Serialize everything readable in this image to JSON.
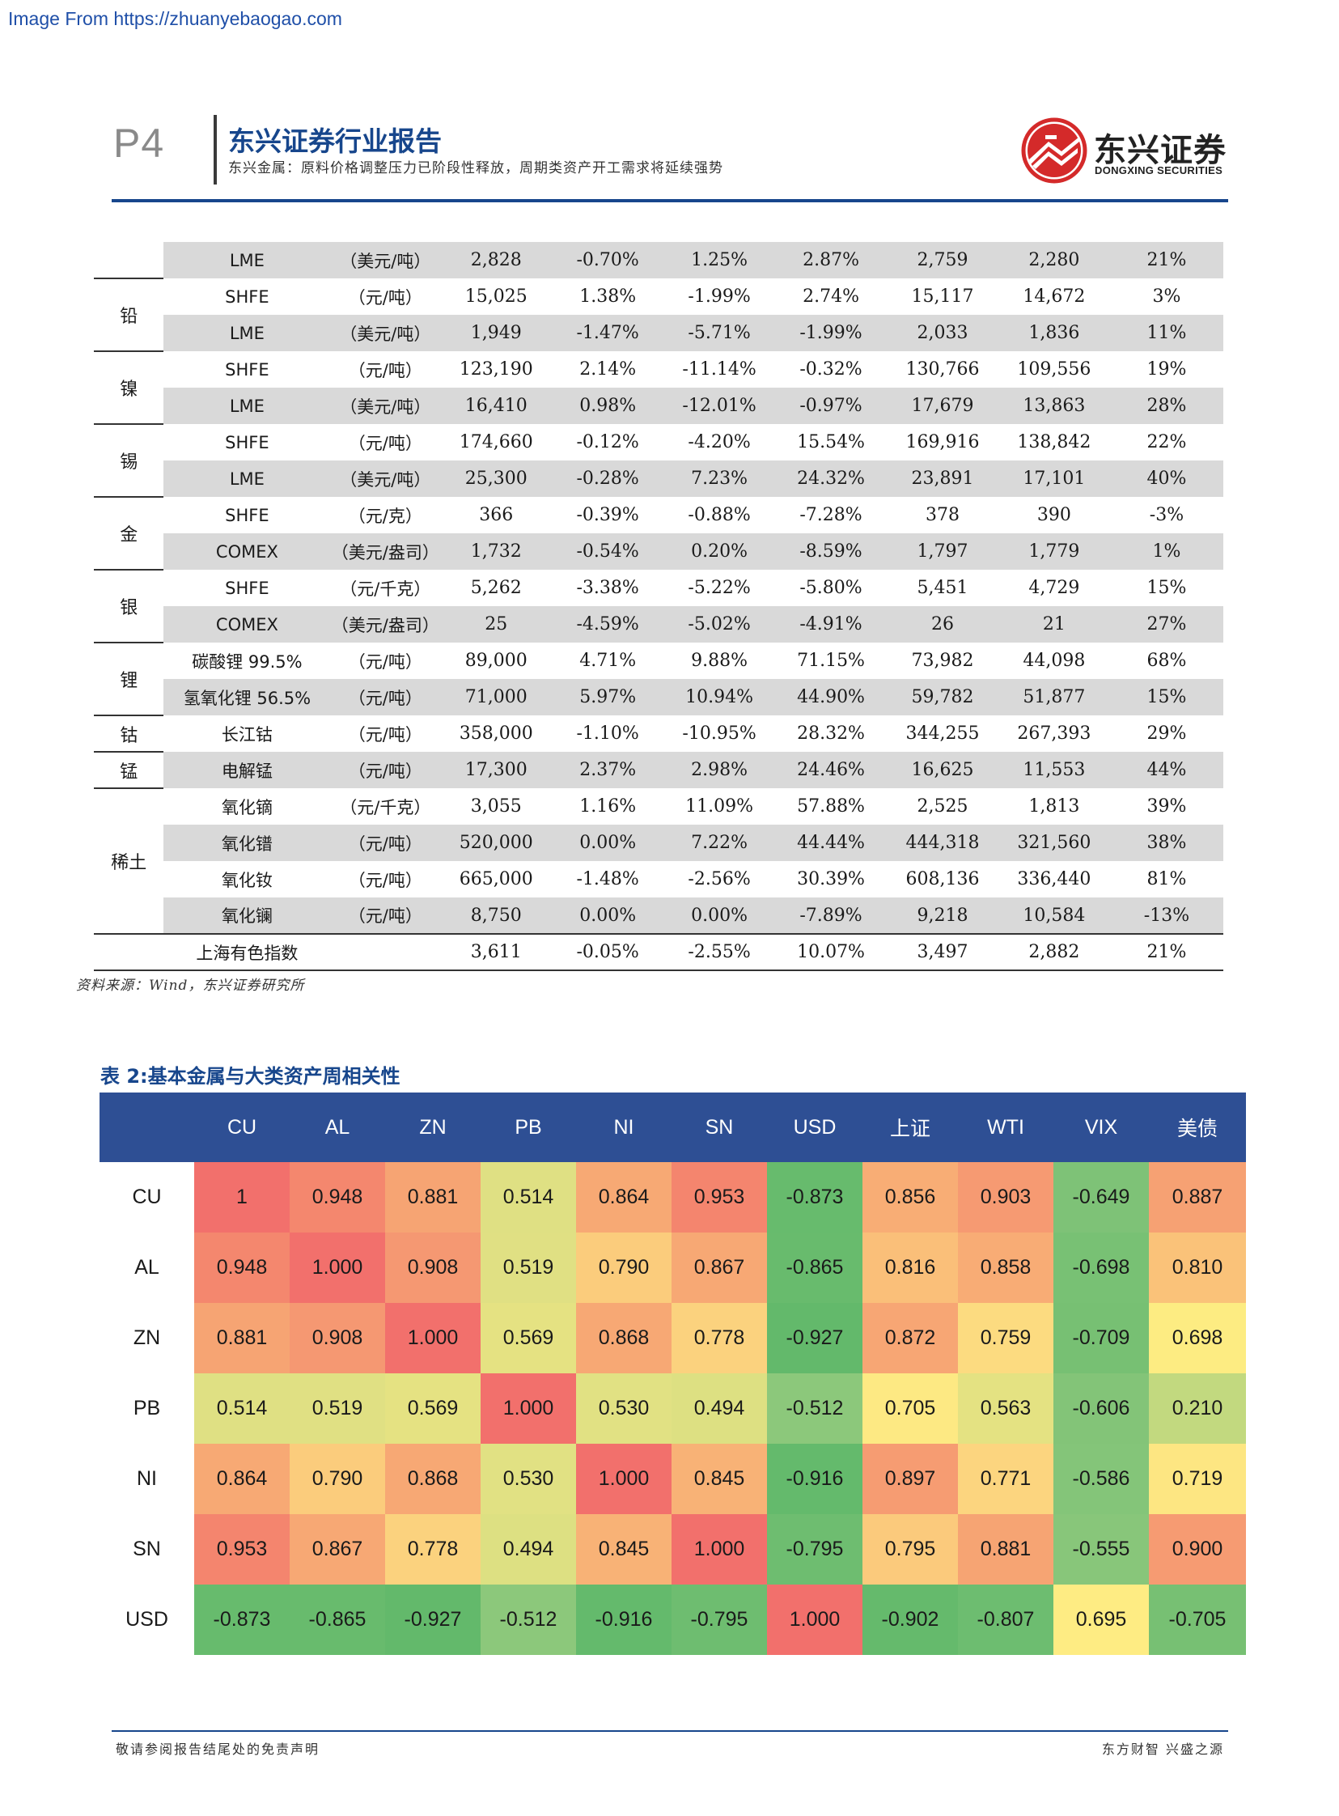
{
  "watermark": "Image From https://zhuanyebaogao.com",
  "header": {
    "page_number": "P4",
    "title": "东兴证券行业报告",
    "subtitle": "东兴金属：原料价格调整压力已阶段性释放，周期类资产开工需求将延续强势",
    "logo_cn": "东兴证券",
    "logo_en": "DONGXING SECURITIES"
  },
  "table1": {
    "rows": [
      {
        "group": "",
        "market": "LME",
        "unit": "（美元/吨）",
        "price": "2,828",
        "c1": "-0.70%",
        "c2": "1.25%",
        "c3": "2.87%",
        "v1": "2,759",
        "v2": "2,280",
        "pct": "21%"
      },
      {
        "group": "铅",
        "market": "SHFE",
        "unit": "（元/吨）",
        "price": "15,025",
        "c1": "1.38%",
        "c2": "-1.99%",
        "c3": "2.74%",
        "v1": "15,117",
        "v2": "14,672",
        "pct": "3%"
      },
      {
        "group": "",
        "market": "LME",
        "unit": "（美元/吨）",
        "price": "1,949",
        "c1": "-1.47%",
        "c2": "-5.71%",
        "c3": "-1.99%",
        "v1": "2,033",
        "v2": "1,836",
        "pct": "11%"
      },
      {
        "group": "镍",
        "market": "SHFE",
        "unit": "（元/吨）",
        "price": "123,190",
        "c1": "2.14%",
        "c2": "-11.14%",
        "c3": "-0.32%",
        "v1": "130,766",
        "v2": "109,556",
        "pct": "19%"
      },
      {
        "group": "",
        "market": "LME",
        "unit": "（美元/吨）",
        "price": "16,410",
        "c1": "0.98%",
        "c2": "-12.01%",
        "c3": "-0.97%",
        "v1": "17,679",
        "v2": "13,863",
        "pct": "28%"
      },
      {
        "group": "锡",
        "market": "SHFE",
        "unit": "（元/吨）",
        "price": "174,660",
        "c1": "-0.12%",
        "c2": "-4.20%",
        "c3": "15.54%",
        "v1": "169,916",
        "v2": "138,842",
        "pct": "22%"
      },
      {
        "group": "",
        "market": "LME",
        "unit": "（美元/吨）",
        "price": "25,300",
        "c1": "-0.28%",
        "c2": "7.23%",
        "c3": "24.32%",
        "v1": "23,891",
        "v2": "17,101",
        "pct": "40%"
      },
      {
        "group": "金",
        "market": "SHFE",
        "unit": "（元/克）",
        "price": "366",
        "c1": "-0.39%",
        "c2": "-0.88%",
        "c3": "-7.28%",
        "v1": "378",
        "v2": "390",
        "pct": "-3%"
      },
      {
        "group": "",
        "market": "COMEX",
        "unit": "（美元/盎司）",
        "price": "1,732",
        "c1": "-0.54%",
        "c2": "0.20%",
        "c3": "-8.59%",
        "v1": "1,797",
        "v2": "1,779",
        "pct": "1%"
      },
      {
        "group": "银",
        "market": "SHFE",
        "unit": "（元/千克）",
        "price": "5,262",
        "c1": "-3.38%",
        "c2": "-5.22%",
        "c3": "-5.80%",
        "v1": "5,451",
        "v2": "4,729",
        "pct": "15%"
      },
      {
        "group": "",
        "market": "COMEX",
        "unit": "（美元/盎司）",
        "price": "25",
        "c1": "-4.59%",
        "c2": "-5.02%",
        "c3": "-4.91%",
        "v1": "26",
        "v2": "21",
        "pct": "27%"
      },
      {
        "group": "锂",
        "market": "碳酸锂 99.5%",
        "unit": "（元/吨）",
        "price": "89,000",
        "c1": "4.71%",
        "c2": "9.88%",
        "c3": "71.15%",
        "v1": "73,982",
        "v2": "44,098",
        "pct": "68%"
      },
      {
        "group": "",
        "market": "氢氧化锂 56.5%",
        "unit": "（元/吨）",
        "price": "71,000",
        "c1": "5.97%",
        "c2": "10.94%",
        "c3": "44.90%",
        "v1": "59,782",
        "v2": "51,877",
        "pct": "15%"
      },
      {
        "group": "钴",
        "market": "长江钴",
        "unit": "（元/吨）",
        "price": "358,000",
        "c1": "-1.10%",
        "c2": "-10.95%",
        "c3": "28.32%",
        "v1": "344,255",
        "v2": "267,393",
        "pct": "29%"
      },
      {
        "group": "锰",
        "market": "电解锰",
        "unit": "（元/吨）",
        "price": "17,300",
        "c1": "2.37%",
        "c2": "2.98%",
        "c3": "24.46%",
        "v1": "16,625",
        "v2": "11,553",
        "pct": "44%"
      },
      {
        "group": "稀土",
        "market": "氧化镝",
        "unit": "（元/千克）",
        "price": "3,055",
        "c1": "1.16%",
        "c2": "11.09%",
        "c3": "57.88%",
        "v1": "2,525",
        "v2": "1,813",
        "pct": "39%"
      },
      {
        "group": "",
        "market": "氧化镨",
        "unit": "（元/吨）",
        "price": "520,000",
        "c1": "0.00%",
        "c2": "7.22%",
        "c3": "44.44%",
        "v1": "444,318",
        "v2": "321,560",
        "pct": "38%"
      },
      {
        "group": "",
        "market": "氧化钕",
        "unit": "（元/吨）",
        "price": "665,000",
        "c1": "-1.48%",
        "c2": "-2.56%",
        "c3": "30.39%",
        "v1": "608,136",
        "v2": "336,440",
        "pct": "81%"
      },
      {
        "group": "",
        "market": "氧化镧",
        "unit": "（元/吨）",
        "price": "8,750",
        "c1": "0.00%",
        "c2": "0.00%",
        "c3": "-7.89%",
        "v1": "9,218",
        "v2": "10,584",
        "pct": "-13%"
      }
    ],
    "index_row": {
      "market": "上海有色指数",
      "unit": "",
      "price": "3,611",
      "c1": "-0.05%",
      "c2": "-2.55%",
      "c3": "10.07%",
      "v1": "3,497",
      "v2": "2,882",
      "pct": "21%"
    },
    "source": "资料来源：Wind，东兴证券研究所"
  },
  "table2": {
    "caption": "表 2:基本金属与大类资产周相关性",
    "columns": [
      "",
      "CU",
      "AL",
      "ZN",
      "PB",
      "NI",
      "SN",
      "USD",
      "上证",
      "WTI",
      "VIX",
      "美债"
    ],
    "rows": [
      {
        "label": "CU",
        "cells": [
          {
            "v": "1",
            "bg": "#f2706c"
          },
          {
            "v": "0.948",
            "bg": "#f4876e"
          },
          {
            "v": "0.881",
            "bg": "#f6a473"
          },
          {
            "v": "0.514",
            "bg": "#dfe083"
          },
          {
            "v": "0.864",
            "bg": "#f7a974"
          },
          {
            "v": "0.953",
            "bg": "#f4856e"
          },
          {
            "v": "-0.873",
            "bg": "#67bb6d"
          },
          {
            "v": "0.856",
            "bg": "#f8ad75"
          },
          {
            "v": "0.903",
            "bg": "#f69a72"
          },
          {
            "v": "-0.649",
            "bg": "#7ec277"
          },
          {
            "v": "0.887",
            "bg": "#f6a173"
          }
        ]
      },
      {
        "label": "AL",
        "cells": [
          {
            "v": "0.948",
            "bg": "#f4876e"
          },
          {
            "v": "1.000",
            "bg": "#f2706c"
          },
          {
            "v": "0.908",
            "bg": "#f59872"
          },
          {
            "v": "0.519",
            "bg": "#e0e083"
          },
          {
            "v": "0.790",
            "bg": "#fbcc7c"
          },
          {
            "v": "0.867",
            "bg": "#f7a874"
          },
          {
            "v": "-0.865",
            "bg": "#68bb6d"
          },
          {
            "v": "0.816",
            "bg": "#fabf79"
          },
          {
            "v": "0.858",
            "bg": "#f8ac75"
          },
          {
            "v": "-0.698",
            "bg": "#78c174"
          },
          {
            "v": "0.810",
            "bg": "#fac279"
          }
        ]
      },
      {
        "label": "ZN",
        "cells": [
          {
            "v": "0.881",
            "bg": "#f6a473"
          },
          {
            "v": "0.908",
            "bg": "#f59872"
          },
          {
            "v": "1.000",
            "bg": "#f2706c"
          },
          {
            "v": "0.569",
            "bg": "#e5e282"
          },
          {
            "v": "0.868",
            "bg": "#f7a874"
          },
          {
            "v": "0.778",
            "bg": "#fbd27e"
          },
          {
            "v": "-0.927",
            "bg": "#63b96b"
          },
          {
            "v": "0.872",
            "bg": "#f7a674"
          },
          {
            "v": "0.759",
            "bg": "#fcdb80"
          },
          {
            "v": "-0.709",
            "bg": "#77c073"
          },
          {
            "v": "0.698",
            "bg": "#fdec82"
          }
        ]
      },
      {
        "label": "PB",
        "cells": [
          {
            "v": "0.514",
            "bg": "#dfe083"
          },
          {
            "v": "0.519",
            "bg": "#e0e083"
          },
          {
            "v": "0.569",
            "bg": "#e5e282"
          },
          {
            "v": "1.000",
            "bg": "#f2706c"
          },
          {
            "v": "0.530",
            "bg": "#e1e183"
          },
          {
            "v": "0.494",
            "bg": "#dde082"
          },
          {
            "v": "-0.512",
            "bg": "#8cc87b"
          },
          {
            "v": "0.705",
            "bg": "#fde983"
          },
          {
            "v": "0.563",
            "bg": "#e4e282"
          },
          {
            "v": "-0.606",
            "bg": "#83c478"
          },
          {
            "v": "0.210",
            "bg": "#c2d97f"
          }
        ]
      },
      {
        "label": "NI",
        "cells": [
          {
            "v": "0.864",
            "bg": "#f7a974"
          },
          {
            "v": "0.790",
            "bg": "#fbcc7c"
          },
          {
            "v": "0.868",
            "bg": "#f7a874"
          },
          {
            "v": "0.530",
            "bg": "#e1e183"
          },
          {
            "v": "1.000",
            "bg": "#f2706c"
          },
          {
            "v": "0.845",
            "bg": "#f8b276"
          },
          {
            "v": "-0.916",
            "bg": "#64ba6c"
          },
          {
            "v": "0.897",
            "bg": "#f69c72"
          },
          {
            "v": "0.771",
            "bg": "#fcd57f"
          },
          {
            "v": "-0.586",
            "bg": "#84c579"
          },
          {
            "v": "0.719",
            "bg": "#fde682"
          }
        ]
      },
      {
        "label": "SN",
        "cells": [
          {
            "v": "0.953",
            "bg": "#f4856e"
          },
          {
            "v": "0.867",
            "bg": "#f7a874"
          },
          {
            "v": "0.778",
            "bg": "#fbd27e"
          },
          {
            "v": "0.494",
            "bg": "#dde082"
          },
          {
            "v": "0.845",
            "bg": "#f8b276"
          },
          {
            "v": "1.000",
            "bg": "#f2706c"
          },
          {
            "v": "-0.795",
            "bg": "#6ebd70"
          },
          {
            "v": "0.795",
            "bg": "#fbca7c"
          },
          {
            "v": "0.881",
            "bg": "#f6a473"
          },
          {
            "v": "-0.555",
            "bg": "#88c67a"
          },
          {
            "v": "0.900",
            "bg": "#f69b72"
          }
        ]
      },
      {
        "label": "USD",
        "cells": [
          {
            "v": "-0.873",
            "bg": "#67bb6d"
          },
          {
            "v": "-0.865",
            "bg": "#68bb6d"
          },
          {
            "v": "-0.927",
            "bg": "#63b96b"
          },
          {
            "v": "-0.512",
            "bg": "#8cc87b"
          },
          {
            "v": "-0.916",
            "bg": "#64ba6c"
          },
          {
            "v": "-0.795",
            "bg": "#6ebd70"
          },
          {
            "v": "1.000",
            "bg": "#f2706c"
          },
          {
            "v": "-0.902",
            "bg": "#65ba6c"
          },
          {
            "v": "-0.807",
            "bg": "#6dbd70"
          },
          {
            "v": "0.695",
            "bg": "#feec83"
          },
          {
            "v": "-0.705",
            "bg": "#77c073"
          }
        ]
      }
    ]
  },
  "footer": {
    "left": "敬请参阅报告结尾处的免责声明",
    "right": "东方财智 兴盛之源"
  },
  "colors": {
    "brand_blue": "#17468c",
    "header_bar": "#2e4f94",
    "shade_gray": "#d9d9d9",
    "logo_red": "#d42a2a"
  }
}
